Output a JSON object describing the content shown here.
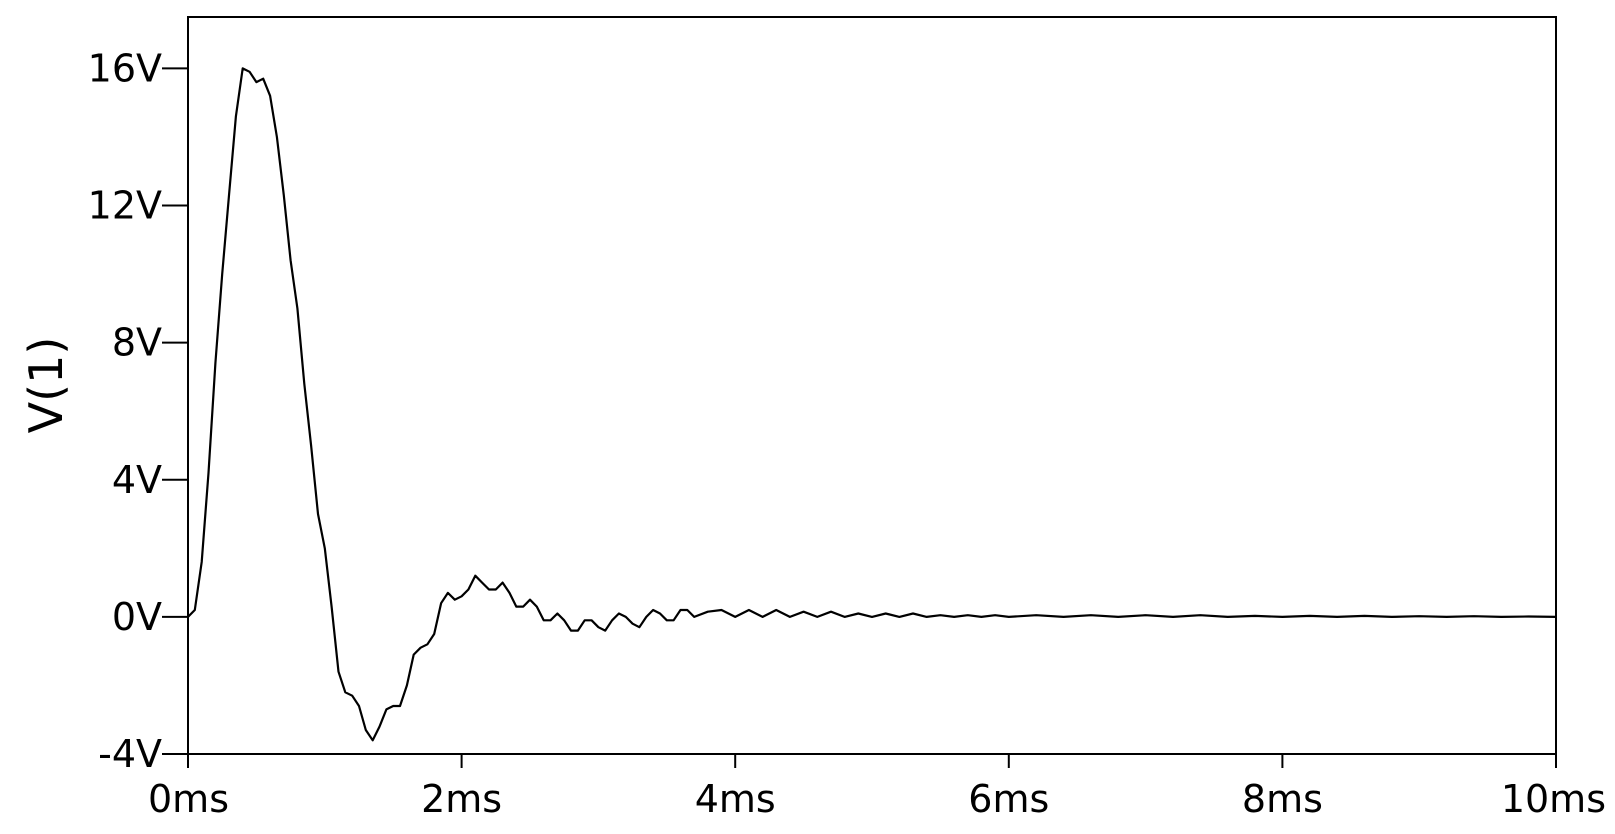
{
  "chart_data": {
    "type": "line",
    "title": "",
    "xlabel": "",
    "ylabel": "V(1)",
    "xlim": [
      0,
      10
    ],
    "ylim": [
      -4,
      17.5
    ],
    "x_unit": "ms",
    "y_unit": "V",
    "grid": false,
    "legend": "none",
    "line_color": "#000000",
    "x_ticks": [
      {
        "value": 0,
        "label": "0ms"
      },
      {
        "value": 2,
        "label": "2ms"
      },
      {
        "value": 4,
        "label": "4ms"
      },
      {
        "value": 6,
        "label": "6ms"
      },
      {
        "value": 8,
        "label": "8ms"
      },
      {
        "value": 10,
        "label": "10ms"
      }
    ],
    "y_ticks": [
      {
        "value": -4,
        "label": "-4V"
      },
      {
        "value": 0,
        "label": "0V"
      },
      {
        "value": 4,
        "label": "4V"
      },
      {
        "value": 8,
        "label": "8V"
      },
      {
        "value": 12,
        "label": "12V"
      },
      {
        "value": 16,
        "label": "16V"
      }
    ],
    "series": [
      {
        "x": [
          0,
          0.05,
          0.1,
          0.15,
          0.2,
          0.25,
          0.3,
          0.35,
          0.4,
          0.45,
          0.5,
          0.55,
          0.6,
          0.65,
          0.7,
          0.75,
          0.8,
          0.85,
          0.9,
          0.95,
          1.0,
          1.05,
          1.1,
          1.15,
          1.2,
          1.25,
          1.3,
          1.35,
          1.4,
          1.45,
          1.5,
          1.55,
          1.6,
          1.65,
          1.7,
          1.75,
          1.8,
          1.85,
          1.9,
          1.95,
          2.0,
          2.05,
          2.1,
          2.15,
          2.2,
          2.25,
          2.3,
          2.35,
          2.4,
          2.45,
          2.5,
          2.55,
          2.6,
          2.65,
          2.7,
          2.75,
          2.8,
          2.85,
          2.9,
          2.95,
          3.0,
          3.05,
          3.1,
          3.15,
          3.2,
          3.25,
          3.3,
          3.35,
          3.4,
          3.45,
          3.5,
          3.55,
          3.6,
          3.65,
          3.7,
          3.8,
          3.9,
          4.0,
          4.1,
          4.2,
          4.3,
          4.4,
          4.5,
          4.6,
          4.7,
          4.8,
          4.9,
          5.0,
          5.1,
          5.2,
          5.3,
          5.4,
          5.5,
          5.6,
          5.7,
          5.8,
          5.9,
          6.0,
          6.2,
          6.4,
          6.6,
          6.8,
          7.0,
          7.2,
          7.4,
          7.6,
          7.8,
          8.0,
          8.2,
          8.4,
          8.6,
          8.8,
          9.0,
          9.2,
          9.4,
          9.6,
          9.8,
          10.0
        ],
        "y": [
          0,
          0.2,
          1.6,
          4.2,
          7.4,
          10.0,
          12.3,
          14.6,
          16.0,
          15.9,
          15.6,
          15.7,
          15.2,
          14.0,
          12.3,
          10.4,
          9.0,
          6.8,
          5.0,
          3.0,
          2.0,
          0.3,
          -1.6,
          -2.2,
          -2.3,
          -2.6,
          -3.3,
          -3.6,
          -3.2,
          -2.7,
          -2.6,
          -2.6,
          -2.0,
          -1.1,
          -0.9,
          -0.8,
          -0.5,
          0.4,
          0.7,
          0.5,
          0.6,
          0.8,
          1.2,
          1.0,
          0.8,
          0.8,
          1.0,
          0.7,
          0.3,
          0.3,
          0.5,
          0.3,
          -0.1,
          -0.1,
          0.1,
          -0.1,
          -0.4,
          -0.4,
          -0.1,
          -0.1,
          -0.3,
          -0.4,
          -0.1,
          0.1,
          0.0,
          -0.2,
          -0.3,
          0.0,
          0.2,
          0.1,
          -0.1,
          -0.1,
          0.2,
          0.2,
          0.0,
          0.15,
          0.2,
          0.0,
          0.2,
          0.0,
          0.2,
          0.0,
          0.15,
          0.0,
          0.15,
          0.0,
          0.1,
          0.0,
          0.1,
          0.0,
          0.1,
          0.0,
          0.05,
          0.0,
          0.05,
          0.0,
          0.05,
          0.0,
          0.05,
          0.0,
          0.05,
          0.0,
          0.05,
          0.0,
          0.05,
          0.0,
          0.03,
          0.0,
          0.03,
          0.0,
          0.03,
          0.0,
          0.02,
          0.0,
          0.02,
          0.0,
          0.01,
          0.0
        ]
      }
    ]
  }
}
